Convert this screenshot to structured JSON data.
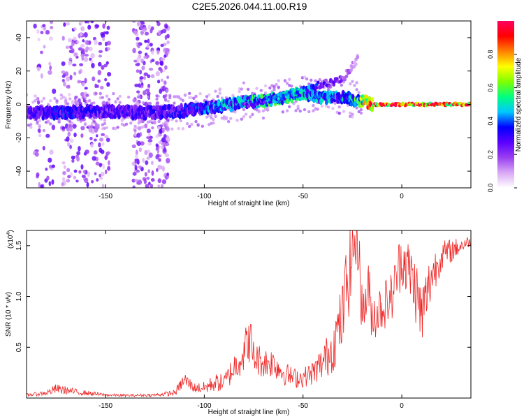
{
  "title": "C2E5.2026.044.11.00.R19",
  "colors": {
    "snr_line": "#ee2222",
    "axes": "#000000",
    "colormap": [
      "#ffffff",
      "#d9a8f5",
      "#9a3ff0",
      "#5a00ff",
      "#0000ff",
      "#00c8ff",
      "#00ff80",
      "#80ff00",
      "#ffff00",
      "#ff8000",
      "#ff0000",
      "#ff0060"
    ]
  },
  "chart_data": [
    {
      "type": "heatmap",
      "xlabel": "Height of straight line (km)",
      "ylabel": "Frequency (Hz)",
      "xlim": [
        -190,
        35
      ],
      "ylim": [
        -50,
        50
      ],
      "x_ticks": [
        -150,
        -100,
        -50,
        0
      ],
      "y_ticks": [
        -40,
        -20,
        0,
        20,
        40
      ],
      "colorbar": {
        "label": "Normalized spectral amplitude",
        "range": [
          0,
          1
        ],
        "ticks": [
          0.0,
          0.2,
          0.4,
          0.6,
          0.8
        ]
      },
      "ridge": {
        "x": [
          -190,
          -170,
          -150,
          -130,
          -110,
          -100,
          -90,
          -80,
          -70,
          -60,
          -50,
          -40,
          -30,
          -25,
          -20,
          -15,
          -5,
          5,
          15,
          25,
          35
        ],
        "frequency": [
          -5,
          -5,
          -4,
          -5,
          -4,
          -2,
          -1,
          2,
          2,
          4,
          7,
          4,
          4,
          3,
          2,
          0,
          0,
          0,
          0,
          0,
          0
        ],
        "amplitude": [
          0.3,
          0.35,
          0.3,
          0.3,
          0.35,
          0.4,
          0.45,
          0.5,
          0.55,
          0.55,
          0.5,
          0.45,
          0.45,
          0.5,
          0.7,
          0.9,
          0.95,
          0.95,
          0.95,
          0.95,
          0.95
        ]
      },
      "upper_branch": {
        "x": [
          -80,
          -70,
          -60,
          -50,
          -40,
          -30,
          -22
        ],
        "frequency": [
          -1,
          2,
          5,
          9,
          12,
          15,
          28
        ],
        "amplitude": [
          0.25,
          0.35,
          0.45,
          0.5,
          0.3,
          0.2,
          0.1
        ]
      },
      "scatter_bands": [
        {
          "x_range": [
            -172,
            -148
          ],
          "density": 0.9
        },
        {
          "x_range": [
            -136,
            -126
          ],
          "density": 0.55
        },
        {
          "x_range": [
            -124,
            -118
          ],
          "density": 0.45
        },
        {
          "x_range": [
            -186,
            -176
          ],
          "density": 0.2
        }
      ]
    },
    {
      "type": "line",
      "xlabel": "Height of straight line (km)",
      "ylabel": "SNR (10 * v/v)",
      "yscale_label": "(x10",
      "yscale_exponent": "4",
      "y_exponent": 4,
      "xlim": [
        -190,
        35
      ],
      "ylim": [
        0,
        16500
      ],
      "x_ticks": [
        -150,
        -100,
        -50,
        0
      ],
      "y_ticks": [
        5000,
        10000,
        15000
      ],
      "y_tick_labels": [
        "0.5",
        "1.0",
        "1.5"
      ],
      "series": [
        {
          "x": [
            -190,
            -180,
            -175,
            -165,
            -150,
            -140,
            -125,
            -115,
            -110,
            -105,
            -100,
            -95,
            -90,
            -85,
            -80,
            -77,
            -75,
            -70,
            -65,
            -60,
            -55,
            -50,
            -45,
            -40,
            -35,
            -30,
            -28,
            -25,
            -22,
            -20,
            -17,
            -15,
            -10,
            -5,
            0,
            5,
            8,
            10,
            15,
            20,
            25,
            30,
            35
          ],
          "values": [
            300,
            500,
            900,
            600,
            300,
            250,
            300,
            500,
            1800,
            1000,
            1000,
            1500,
            1500,
            3000,
            4500,
            6000,
            4000,
            3500,
            3500,
            2500,
            2000,
            2000,
            2500,
            3500,
            5000,
            8000,
            11000,
            15000,
            16000,
            8000,
            11000,
            8000,
            9000,
            10000,
            14000,
            12000,
            10000,
            8000,
            12000,
            14000,
            14500,
            15000,
            15500
          ],
          "noise": [
            150,
            250,
            500,
            300,
            150,
            120,
            150,
            300,
            800,
            500,
            600,
            900,
            900,
            1500,
            2000,
            2500,
            1800,
            1500,
            1500,
            1200,
            1000,
            1000,
            1200,
            1800,
            2500,
            3500,
            4500,
            5000,
            4000,
            2500,
            2800,
            2500,
            2500,
            2500,
            3000,
            3000,
            3500,
            3500,
            2500,
            1500,
            1200,
            800,
            500
          ]
        }
      ]
    }
  ]
}
